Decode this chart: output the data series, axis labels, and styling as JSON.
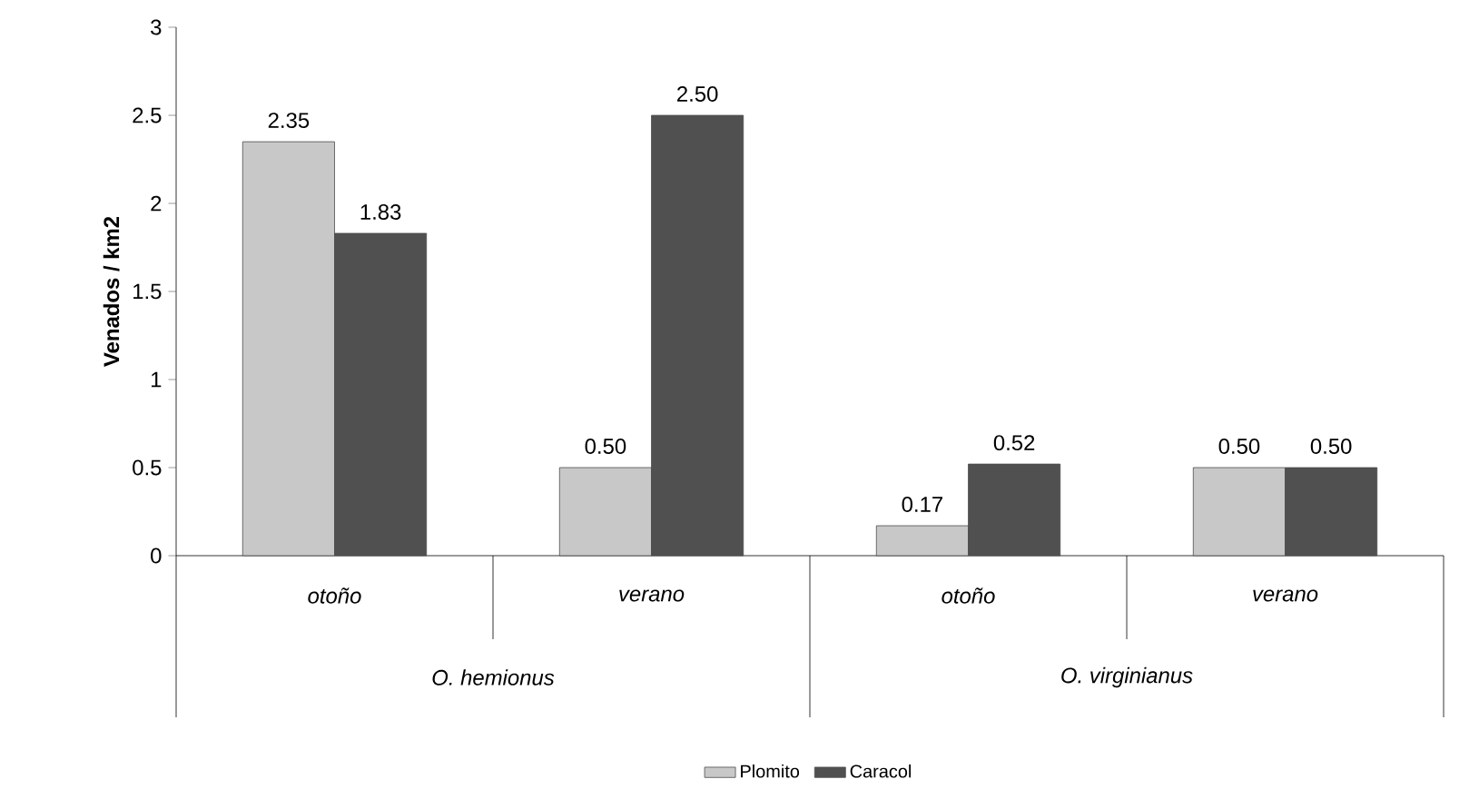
{
  "chart_data": {
    "type": "bar",
    "ylabel": "Venados / km2",
    "categories": [
      "otoño",
      "verano",
      "otoño",
      "verano"
    ],
    "series": [
      {
        "name": "Plomito",
        "color": "#c8c8c8",
        "values": [
          2.35,
          0.5,
          0.17,
          0.5
        ],
        "value_labels": [
          "2.35",
          "0.50",
          "0.17",
          "0.50"
        ]
      },
      {
        "name": "Caracol",
        "color": "#505050",
        "values": [
          1.83,
          2.5,
          0.52,
          0.5
        ],
        "value_labels": [
          "1.83",
          "2.50",
          "0.52",
          "0.50"
        ]
      }
    ],
    "annotations": [
      "O. hemionus",
      "O. virginianus"
    ],
    "ylim": [
      0,
      3
    ],
    "yticks": [
      0,
      0.5,
      1,
      1.5,
      2,
      2.5,
      3
    ],
    "legend": "bottom",
    "grid": false
  }
}
